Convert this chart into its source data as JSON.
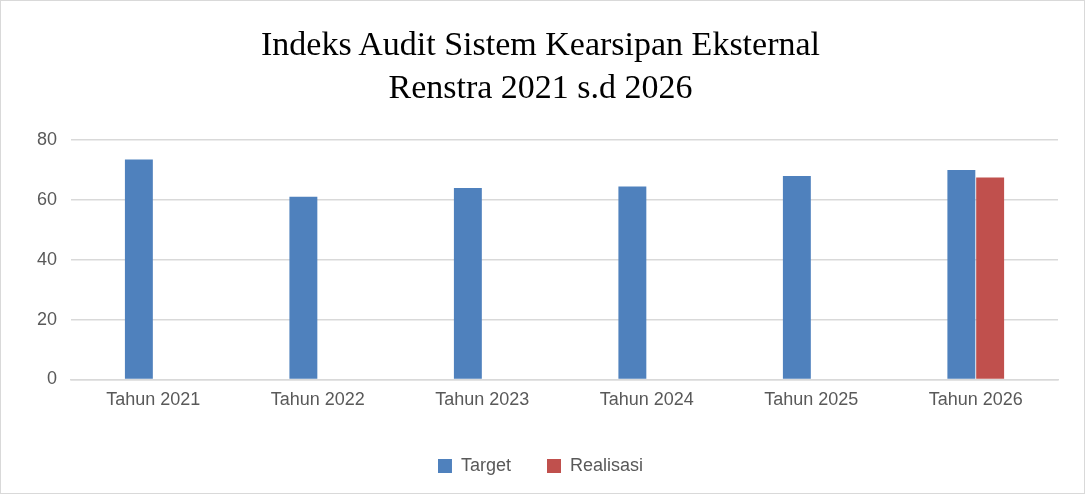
{
  "chart_data": {
    "type": "bar",
    "title": "Indeks Audit Sistem Kearsipan Eksternal\nRenstra 2021 s.d 2026",
    "categories": [
      "Tahun 2021",
      "Tahun 2022",
      "Tahun 2023",
      "Tahun 2024",
      "Tahun 2025",
      "Tahun 2026"
    ],
    "series": [
      {
        "name": "Target",
        "color": "#4f81bd",
        "values": [
          73.5,
          61,
          64,
          64.5,
          68,
          70
        ]
      },
      {
        "name": "Realisasi",
        "color": "#c0504d",
        "values": [
          null,
          null,
          null,
          null,
          null,
          67.5
        ]
      }
    ],
    "ylim": [
      0,
      80
    ],
    "yticks": [
      0,
      20,
      40,
      60,
      80
    ],
    "grid": "y",
    "legend": "bottom"
  }
}
